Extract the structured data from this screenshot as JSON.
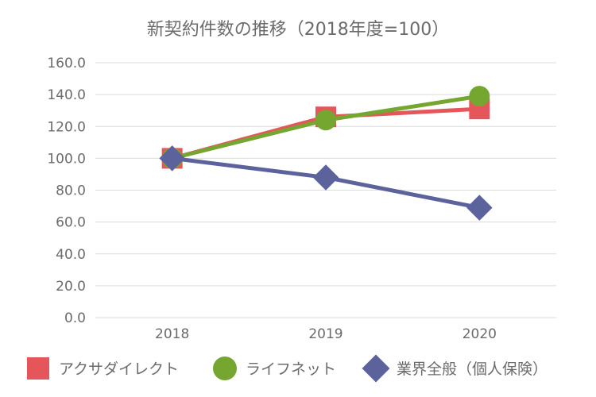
{
  "chart_data": {
    "type": "line",
    "title": "新契約件数の推移（2018年度=100）",
    "x": [
      "2018",
      "2019",
      "2020"
    ],
    "ylim": [
      0,
      160
    ],
    "yticks": [
      "160.0",
      "140.0",
      "120.0",
      "100.0",
      "80.0",
      "60.0",
      "40.0",
      "20.0",
      "0.0"
    ],
    "grid": true,
    "legend_position": "bottom",
    "series": [
      {
        "name": "アクサダイレクト",
        "values": [
          100,
          126,
          131
        ],
        "color": "#e5565a",
        "marker": "square"
      },
      {
        "name": "ライフネット",
        "values": [
          100,
          124,
          139
        ],
        "color": "#74a630",
        "marker": "circle"
      },
      {
        "name": "業界全般（個人保険）",
        "values": [
          100,
          88,
          69
        ],
        "color": "#5b629c",
        "marker": "diamond"
      }
    ]
  }
}
